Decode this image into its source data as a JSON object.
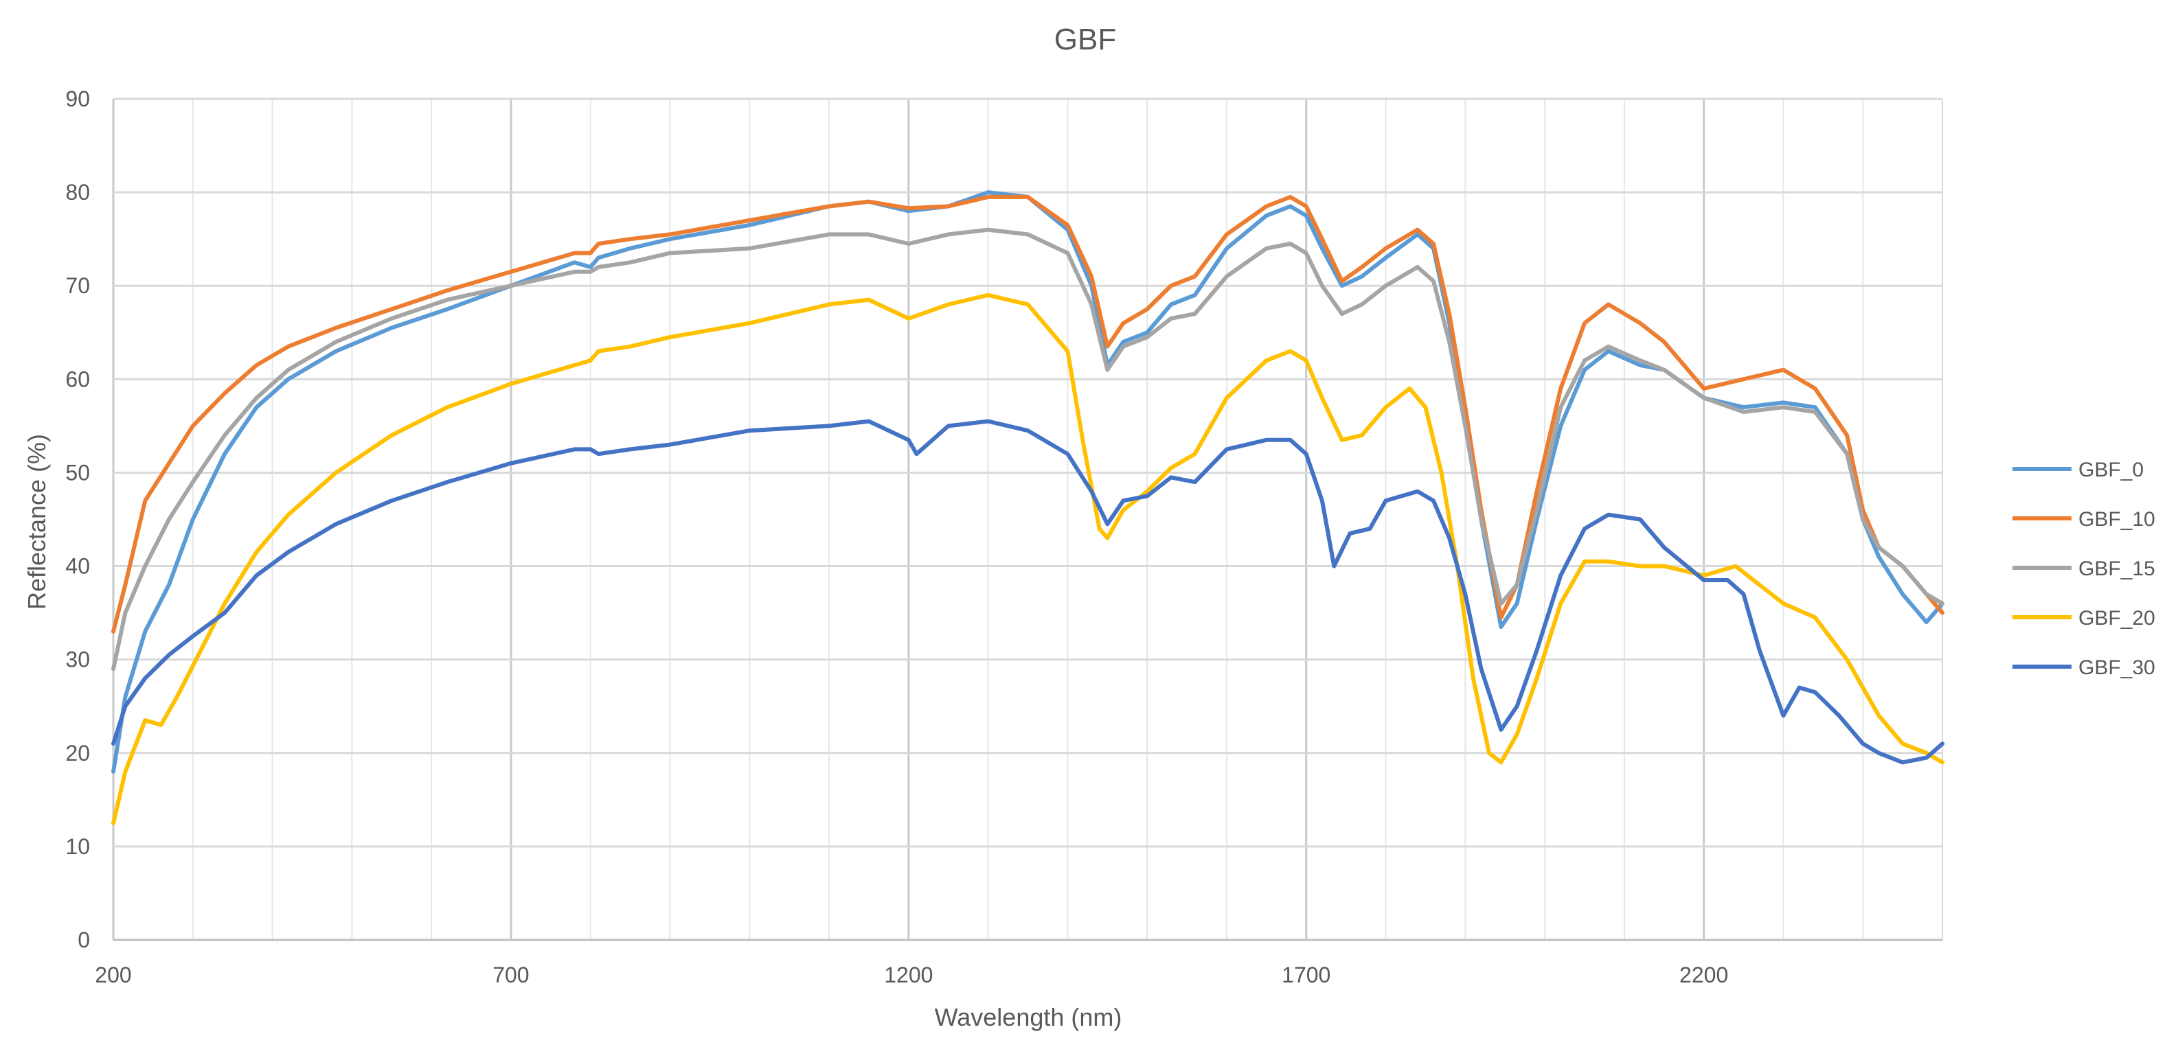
{
  "chart_data": {
    "type": "line",
    "title": "GBF",
    "xlabel": "Wavelength (nm)",
    "ylabel": "Reflectance (%)",
    "xlim": [
      200,
      2500
    ],
    "ylim": [
      0,
      90
    ],
    "xticks": [
      200,
      700,
      1200,
      1700,
      2200
    ],
    "yticks": [
      0,
      10,
      20,
      30,
      40,
      50,
      60,
      70,
      80,
      90
    ],
    "grid": true,
    "legend_position": "right",
    "series": [
      {
        "name": "GBF_0",
        "color": "#5B9BD5",
        "points": [
          [
            200,
            18
          ],
          [
            215,
            26
          ],
          [
            240,
            33
          ],
          [
            270,
            38
          ],
          [
            300,
            45
          ],
          [
            340,
            52
          ],
          [
            380,
            57
          ],
          [
            420,
            60
          ],
          [
            480,
            63
          ],
          [
            550,
            65.5
          ],
          [
            620,
            67.5
          ],
          [
            700,
            70
          ],
          [
            780,
            72.5
          ],
          [
            800,
            72
          ],
          [
            810,
            73
          ],
          [
            850,
            74
          ],
          [
            900,
            75
          ],
          [
            1000,
            76.5
          ],
          [
            1100,
            78.5
          ],
          [
            1150,
            79
          ],
          [
            1200,
            78
          ],
          [
            1250,
            78.5
          ],
          [
            1300,
            80
          ],
          [
            1350,
            79.5
          ],
          [
            1400,
            76
          ],
          [
            1430,
            70
          ],
          [
            1450,
            61.5
          ],
          [
            1470,
            64
          ],
          [
            1500,
            65
          ],
          [
            1530,
            68
          ],
          [
            1560,
            69
          ],
          [
            1600,
            74
          ],
          [
            1650,
            77.5
          ],
          [
            1680,
            78.5
          ],
          [
            1700,
            77.5
          ],
          [
            1720,
            74
          ],
          [
            1745,
            70
          ],
          [
            1770,
            71
          ],
          [
            1800,
            73
          ],
          [
            1840,
            75.5
          ],
          [
            1860,
            74
          ],
          [
            1880,
            66
          ],
          [
            1900,
            56
          ],
          [
            1920,
            45
          ],
          [
            1945,
            33.5
          ],
          [
            1965,
            36
          ],
          [
            1990,
            45
          ],
          [
            2020,
            55
          ],
          [
            2050,
            61
          ],
          [
            2080,
            63
          ],
          [
            2120,
            61.5
          ],
          [
            2150,
            61
          ],
          [
            2200,
            58
          ],
          [
            2250,
            57
          ],
          [
            2300,
            57.5
          ],
          [
            2340,
            57
          ],
          [
            2380,
            52
          ],
          [
            2400,
            45
          ],
          [
            2420,
            41
          ],
          [
            2450,
            37
          ],
          [
            2480,
            34
          ],
          [
            2500,
            36
          ]
        ]
      },
      {
        "name": "GBF_10",
        "color": "#ED7D31",
        "points": [
          [
            200,
            33
          ],
          [
            215,
            38
          ],
          [
            240,
            47
          ],
          [
            270,
            51
          ],
          [
            300,
            55
          ],
          [
            340,
            58.5
          ],
          [
            380,
            61.5
          ],
          [
            420,
            63.5
          ],
          [
            480,
            65.5
          ],
          [
            550,
            67.5
          ],
          [
            620,
            69.5
          ],
          [
            700,
            71.5
          ],
          [
            780,
            73.5
          ],
          [
            800,
            73.5
          ],
          [
            810,
            74.5
          ],
          [
            850,
            75
          ],
          [
            900,
            75.5
          ],
          [
            1000,
            77
          ],
          [
            1100,
            78.5
          ],
          [
            1150,
            79
          ],
          [
            1200,
            78.3
          ],
          [
            1250,
            78.5
          ],
          [
            1300,
            79.5
          ],
          [
            1350,
            79.5
          ],
          [
            1400,
            76.5
          ],
          [
            1430,
            71
          ],
          [
            1450,
            63.5
          ],
          [
            1470,
            66
          ],
          [
            1500,
            67.5
          ],
          [
            1530,
            70
          ],
          [
            1560,
            71
          ],
          [
            1600,
            75.5
          ],
          [
            1650,
            78.5
          ],
          [
            1680,
            79.5
          ],
          [
            1700,
            78.5
          ],
          [
            1720,
            75
          ],
          [
            1745,
            70.5
          ],
          [
            1770,
            72
          ],
          [
            1800,
            74
          ],
          [
            1840,
            76
          ],
          [
            1860,
            74.5
          ],
          [
            1880,
            67
          ],
          [
            1900,
            57
          ],
          [
            1920,
            46
          ],
          [
            1945,
            34.5
          ],
          [
            1965,
            38
          ],
          [
            1990,
            48
          ],
          [
            2020,
            59
          ],
          [
            2050,
            66
          ],
          [
            2080,
            68
          ],
          [
            2120,
            66
          ],
          [
            2150,
            64
          ],
          [
            2200,
            59
          ],
          [
            2250,
            60
          ],
          [
            2300,
            61
          ],
          [
            2340,
            59
          ],
          [
            2380,
            54
          ],
          [
            2400,
            46
          ],
          [
            2420,
            42
          ],
          [
            2450,
            40
          ],
          [
            2480,
            37
          ],
          [
            2500,
            35
          ]
        ]
      },
      {
        "name": "GBF_15",
        "color": "#A5A5A5",
        "points": [
          [
            200,
            29
          ],
          [
            215,
            35
          ],
          [
            240,
            40
          ],
          [
            270,
            45
          ],
          [
            300,
            49
          ],
          [
            340,
            54
          ],
          [
            380,
            58
          ],
          [
            420,
            61
          ],
          [
            480,
            64
          ],
          [
            550,
            66.5
          ],
          [
            620,
            68.5
          ],
          [
            700,
            70
          ],
          [
            780,
            71.5
          ],
          [
            800,
            71.5
          ],
          [
            810,
            72
          ],
          [
            850,
            72.5
          ],
          [
            900,
            73.5
          ],
          [
            1000,
            74
          ],
          [
            1100,
            75.5
          ],
          [
            1150,
            75.5
          ],
          [
            1200,
            74.5
          ],
          [
            1250,
            75.5
          ],
          [
            1300,
            76
          ],
          [
            1350,
            75.5
          ],
          [
            1400,
            73.5
          ],
          [
            1430,
            68
          ],
          [
            1450,
            61
          ],
          [
            1470,
            63.5
          ],
          [
            1500,
            64.5
          ],
          [
            1530,
            66.5
          ],
          [
            1560,
            67
          ],
          [
            1600,
            71
          ],
          [
            1650,
            74
          ],
          [
            1680,
            74.5
          ],
          [
            1700,
            73.5
          ],
          [
            1720,
            70
          ],
          [
            1745,
            67
          ],
          [
            1770,
            68
          ],
          [
            1800,
            70
          ],
          [
            1840,
            72
          ],
          [
            1860,
            70.5
          ],
          [
            1880,
            64
          ],
          [
            1900,
            55
          ],
          [
            1920,
            45
          ],
          [
            1945,
            36
          ],
          [
            1965,
            38
          ],
          [
            1990,
            46
          ],
          [
            2020,
            57
          ],
          [
            2050,
            62
          ],
          [
            2080,
            63.5
          ],
          [
            2120,
            62
          ],
          [
            2150,
            61
          ],
          [
            2200,
            58
          ],
          [
            2250,
            56.5
          ],
          [
            2300,
            57
          ],
          [
            2340,
            56.5
          ],
          [
            2380,
            52
          ],
          [
            2400,
            45
          ],
          [
            2420,
            42
          ],
          [
            2450,
            40
          ],
          [
            2480,
            37
          ],
          [
            2500,
            36
          ]
        ]
      },
      {
        "name": "GBF_20",
        "color": "#FFC000",
        "points": [
          [
            200,
            12.5
          ],
          [
            215,
            18
          ],
          [
            240,
            23.5
          ],
          [
            260,
            23
          ],
          [
            280,
            26
          ],
          [
            310,
            31
          ],
          [
            340,
            36
          ],
          [
            380,
            41.5
          ],
          [
            420,
            45.5
          ],
          [
            480,
            50
          ],
          [
            550,
            54
          ],
          [
            620,
            57
          ],
          [
            700,
            59.5
          ],
          [
            780,
            61.5
          ],
          [
            800,
            62
          ],
          [
            810,
            63
          ],
          [
            850,
            63.5
          ],
          [
            900,
            64.5
          ],
          [
            1000,
            66
          ],
          [
            1100,
            68
          ],
          [
            1150,
            68.5
          ],
          [
            1200,
            66.5
          ],
          [
            1250,
            68
          ],
          [
            1300,
            69
          ],
          [
            1350,
            68
          ],
          [
            1400,
            63
          ],
          [
            1420,
            53
          ],
          [
            1440,
            44
          ],
          [
            1450,
            43
          ],
          [
            1470,
            46
          ],
          [
            1500,
            48
          ],
          [
            1530,
            50.5
          ],
          [
            1560,
            52
          ],
          [
            1600,
            58
          ],
          [
            1650,
            62
          ],
          [
            1680,
            63
          ],
          [
            1700,
            62
          ],
          [
            1720,
            58
          ],
          [
            1745,
            53.5
          ],
          [
            1770,
            54
          ],
          [
            1800,
            57
          ],
          [
            1830,
            59
          ],
          [
            1850,
            57
          ],
          [
            1870,
            50
          ],
          [
            1890,
            40
          ],
          [
            1910,
            28
          ],
          [
            1930,
            20
          ],
          [
            1945,
            19
          ],
          [
            1965,
            22
          ],
          [
            1990,
            28
          ],
          [
            2020,
            36
          ],
          [
            2050,
            40.5
          ],
          [
            2080,
            40.5
          ],
          [
            2120,
            40
          ],
          [
            2150,
            40
          ],
          [
            2200,
            39
          ],
          [
            2240,
            40
          ],
          [
            2270,
            38
          ],
          [
            2300,
            36
          ],
          [
            2340,
            34.5
          ],
          [
            2380,
            30
          ],
          [
            2400,
            27
          ],
          [
            2420,
            24
          ],
          [
            2450,
            21
          ],
          [
            2480,
            20
          ],
          [
            2500,
            19
          ]
        ]
      },
      {
        "name": "GBF_30",
        "color": "#4472C4",
        "points": [
          [
            200,
            21
          ],
          [
            215,
            25
          ],
          [
            240,
            28
          ],
          [
            270,
            30.5
          ],
          [
            300,
            32.5
          ],
          [
            340,
            35
          ],
          [
            380,
            39
          ],
          [
            420,
            41.5
          ],
          [
            480,
            44.5
          ],
          [
            550,
            47
          ],
          [
            620,
            49
          ],
          [
            700,
            51
          ],
          [
            780,
            52.5
          ],
          [
            800,
            52.5
          ],
          [
            810,
            52
          ],
          [
            850,
            52.5
          ],
          [
            900,
            53
          ],
          [
            1000,
            54.5
          ],
          [
            1100,
            55
          ],
          [
            1150,
            55.5
          ],
          [
            1200,
            53.5
          ],
          [
            1210,
            52
          ],
          [
            1250,
            55
          ],
          [
            1300,
            55.5
          ],
          [
            1350,
            54.5
          ],
          [
            1400,
            52
          ],
          [
            1430,
            48
          ],
          [
            1450,
            44.5
          ],
          [
            1470,
            47
          ],
          [
            1500,
            47.5
          ],
          [
            1530,
            49.5
          ],
          [
            1560,
            49
          ],
          [
            1600,
            52.5
          ],
          [
            1650,
            53.5
          ],
          [
            1680,
            53.5
          ],
          [
            1700,
            52
          ],
          [
            1720,
            47
          ],
          [
            1735,
            40
          ],
          [
            1755,
            43.5
          ],
          [
            1780,
            44
          ],
          [
            1800,
            47
          ],
          [
            1840,
            48
          ],
          [
            1860,
            47
          ],
          [
            1880,
            43
          ],
          [
            1900,
            37
          ],
          [
            1920,
            29
          ],
          [
            1945,
            22.5
          ],
          [
            1965,
            25
          ],
          [
            1990,
            31
          ],
          [
            2020,
            39
          ],
          [
            2050,
            44
          ],
          [
            2080,
            45.5
          ],
          [
            2120,
            45
          ],
          [
            2150,
            42
          ],
          [
            2200,
            38.5
          ],
          [
            2230,
            38.5
          ],
          [
            2250,
            37
          ],
          [
            2270,
            31
          ],
          [
            2300,
            24
          ],
          [
            2320,
            27
          ],
          [
            2340,
            26.5
          ],
          [
            2370,
            24
          ],
          [
            2400,
            21
          ],
          [
            2420,
            20
          ],
          [
            2450,
            19
          ],
          [
            2480,
            19.5
          ],
          [
            2500,
            21
          ]
        ]
      }
    ]
  }
}
